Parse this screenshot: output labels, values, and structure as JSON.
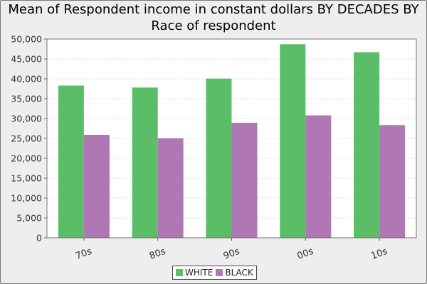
{
  "chart_data": {
    "type": "bar",
    "title": "Mean of Respondent income in constant dollars BY DECADES BY Race of respondent",
    "title_lines": [
      "Mean of Respondent income in constant dollars BY DECADES BY",
      "Race of respondent"
    ],
    "categories": [
      "70s",
      "80s",
      "90s",
      "00s",
      "10s"
    ],
    "series": [
      {
        "name": "WHITE",
        "color": "#5cbd68",
        "values": [
          38300,
          37800,
          40050,
          48700,
          46700
        ]
      },
      {
        "name": "BLACK",
        "color": "#b077b5",
        "values": [
          25900,
          25050,
          28950,
          30800,
          28350
        ]
      }
    ],
    "ylim": [
      0,
      50000
    ],
    "yticks": [
      0,
      5000,
      10000,
      15000,
      20000,
      25000,
      30000,
      35000,
      40000,
      45000,
      50000
    ],
    "ytick_labels": [
      "0",
      "5,000",
      "10,000",
      "15,000",
      "20,000",
      "25,000",
      "30,000",
      "35,000",
      "40,000",
      "45,000",
      "50,000"
    ],
    "xlabel": "",
    "ylabel": "",
    "grid": true,
    "legend_position": "bottom-center"
  }
}
